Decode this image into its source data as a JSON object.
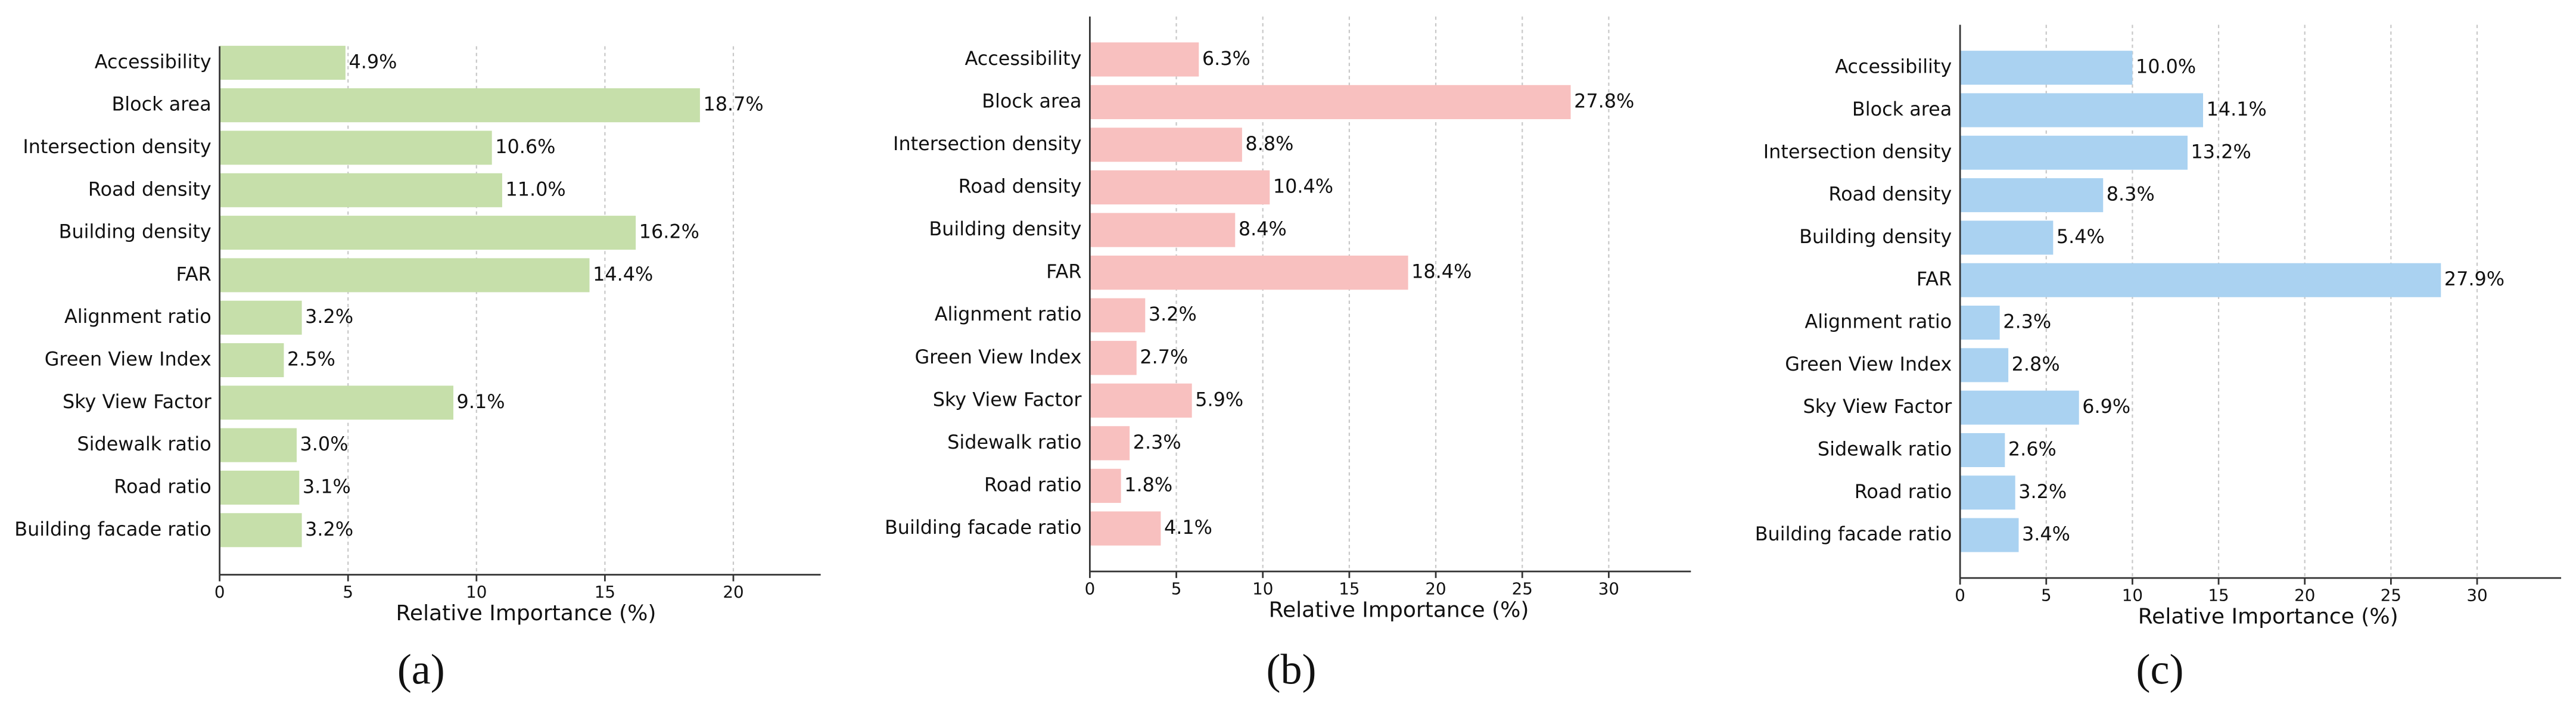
{
  "chart_data": [
    {
      "type": "bar",
      "orientation": "horizontal",
      "caption": "(a)",
      "xlabel": "Relative Importance (%)",
      "color": "#c6dfaa",
      "categories": [
        "Accessibility",
        "Block area",
        "Intersection density",
        "Road density",
        "Building density",
        "FAR",
        "Alignment ratio",
        "Green View Index",
        "Sky View Factor",
        "Sidewalk ratio",
        "Road ratio",
        "Building facade ratio"
      ],
      "values": [
        4.9,
        18.7,
        10.6,
        11.0,
        16.2,
        14.4,
        3.2,
        2.5,
        9.1,
        3.0,
        3.1,
        3.2
      ],
      "value_labels": [
        "4.9%",
        "18.7%",
        "10.6%",
        "11.0%",
        "16.2%",
        "14.4%",
        "3.2%",
        "2.5%",
        "9.1%",
        "3.0%",
        "3.1%",
        "3.2%"
      ],
      "xlim": [
        0,
        23.4
      ],
      "xticks": [
        0,
        5,
        10,
        15,
        20
      ],
      "grid": true
    },
    {
      "type": "bar",
      "orientation": "horizontal",
      "caption": "(b)",
      "xlabel": "Relative Importance (%)",
      "color": "#f8c0bf",
      "categories": [
        "Accessibility",
        "Block area",
        "Intersection density",
        "Road density",
        "Building density",
        "FAR",
        "Alignment ratio",
        "Green View Index",
        "Sky View Factor",
        "Sidewalk ratio",
        "Road ratio",
        "Building facade ratio"
      ],
      "values": [
        6.3,
        27.8,
        8.8,
        10.4,
        8.4,
        18.4,
        3.2,
        2.7,
        5.9,
        2.3,
        1.8,
        4.1
      ],
      "value_labels": [
        "6.3%",
        "27.8%",
        "8.8%",
        "10.4%",
        "8.4%",
        "18.4%",
        "3.2%",
        "2.7%",
        "5.9%",
        "2.3%",
        "1.8%",
        "4.1%"
      ],
      "xlim": [
        0,
        34.75
      ],
      "xticks": [
        0,
        5,
        10,
        15,
        20,
        25,
        30
      ],
      "grid": true
    },
    {
      "type": "bar",
      "orientation": "horizontal",
      "caption": "(c)",
      "xlabel": "Relative Importance (%)",
      "color": "#aad2f1",
      "categories": [
        "Accessibility",
        "Block area",
        "Intersection density",
        "Road density",
        "Building density",
        "FAR",
        "Alignment ratio",
        "Green View Index",
        "Sky View Factor",
        "Sidewalk ratio",
        "Road ratio",
        "Building facade ratio"
      ],
      "values": [
        10.0,
        14.1,
        13.2,
        8.3,
        5.4,
        27.9,
        2.3,
        2.8,
        6.9,
        2.6,
        3.2,
        3.4
      ],
      "value_labels": [
        "10.0%",
        "14.1%",
        "13.2%",
        "8.3%",
        "5.4%",
        "27.9%",
        "2.3%",
        "2.8%",
        "6.9%",
        "2.6%",
        "3.2%",
        "3.4%"
      ],
      "xlim": [
        0,
        34.875
      ],
      "xticks": [
        0,
        5,
        10,
        15,
        20,
        25,
        30
      ],
      "grid": true
    }
  ]
}
